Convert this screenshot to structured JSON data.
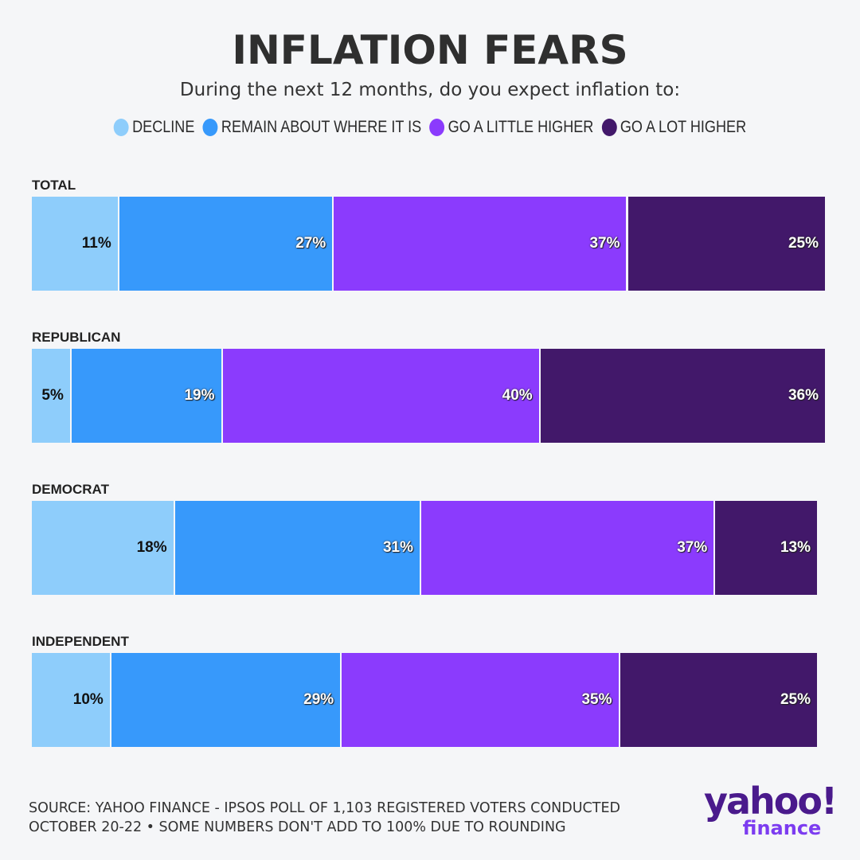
{
  "chart_data": {
    "type": "bar",
    "orientation": "horizontal",
    "stacked": true,
    "title": "INFLATION FEARS",
    "subtitle": "During the next 12 months, do you expect inflation to:",
    "legend_position": "top",
    "grid": false,
    "categories": [
      "TOTAL",
      "REPUBLICAN",
      "DEMOCRAT",
      "INDEPENDENT"
    ],
    "series": [
      {
        "name": "DECLINE",
        "color": "#8ecdfb",
        "values": [
          11,
          5,
          18,
          10
        ]
      },
      {
        "name": "REMAIN ABOUT WHERE IT IS",
        "color": "#3799fb",
        "values": [
          27,
          19,
          31,
          29
        ]
      },
      {
        "name": "GO A LITTLE HIGHER",
        "color": "#8b3bfd",
        "values": [
          37,
          40,
          37,
          35
        ]
      },
      {
        "name": "GO A LOT HIGHER",
        "color": "#42186a",
        "values": [
          25,
          36,
          13,
          25
        ]
      }
    ],
    "value_suffix": "%",
    "xlim": [
      0,
      100
    ]
  },
  "source": {
    "line1": "SOURCE: YAHOO FINANCE - IPSOS POLL OF 1,103 REGISTERED VOTERS CONDUCTED",
    "line2": "OCTOBER 20-22 • SOME NUMBERS DON'T ADD TO 100% DUE TO ROUNDING"
  },
  "logo": {
    "line1": "yahoo!",
    "line2": "finance"
  }
}
